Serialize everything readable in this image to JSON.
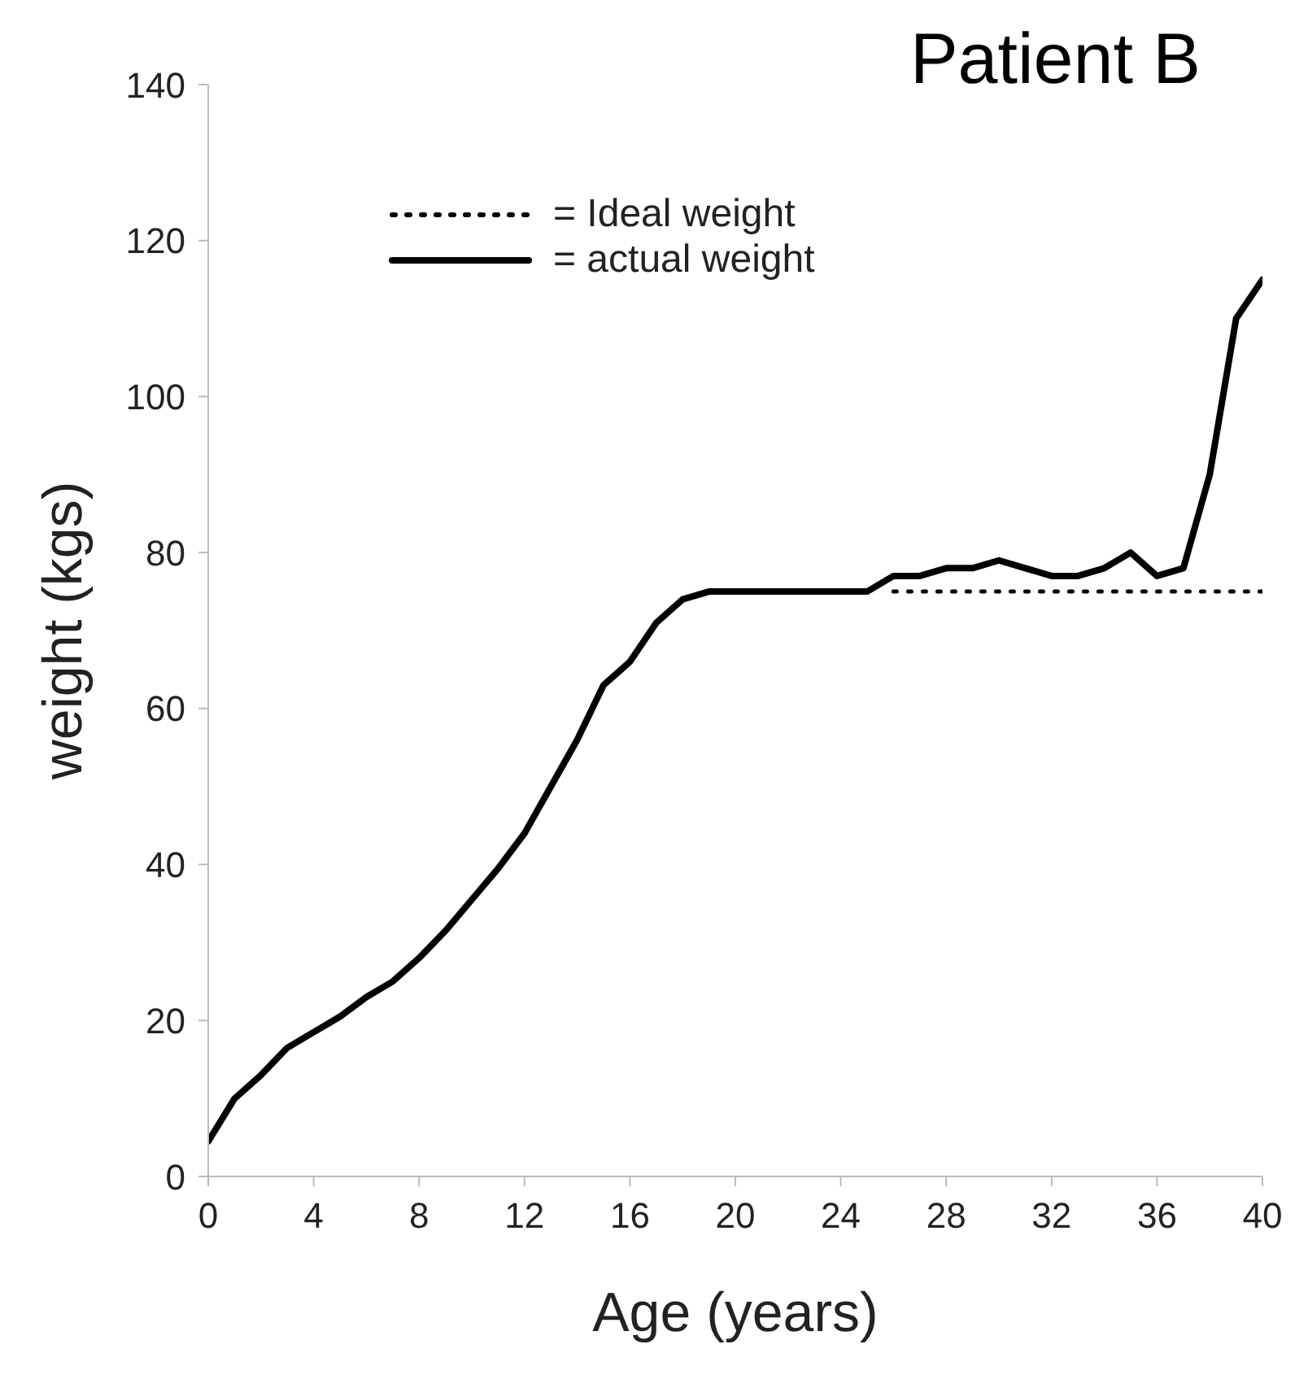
{
  "chart_data": {
    "type": "line",
    "title": "Patient B",
    "xlabel": "Age (years)",
    "ylabel": "weight (kgs)",
    "xlim": [
      0,
      40
    ],
    "xticks": [
      0,
      4,
      8,
      12,
      16,
      20,
      24,
      28,
      32,
      36,
      40
    ],
    "ylim": [
      0,
      140
    ],
    "yticks": [
      0,
      20,
      40,
      60,
      80,
      100,
      120,
      140
    ],
    "legend": "top left",
    "marker": "none",
    "series": [
      {
        "name": "= Ideal weight",
        "color": "#000000",
        "line_style": "dotted",
        "x": [
          26,
          40
        ],
        "values": [
          75,
          75
        ]
      },
      {
        "name": "= actual weight",
        "color": "#000000",
        "line_style": "solid",
        "x": [
          0,
          1,
          2,
          3,
          4,
          5,
          6,
          7,
          8,
          9,
          10,
          11,
          12,
          13,
          14,
          15,
          16,
          17,
          18,
          19,
          20,
          21,
          22,
          23,
          24,
          25,
          26,
          27,
          28,
          29,
          30,
          31,
          32,
          33,
          34,
          35,
          36,
          37,
          38,
          39,
          40
        ],
        "values": [
          4.5,
          10,
          13,
          16.5,
          18.5,
          20.5,
          23,
          25,
          28,
          31.5,
          35.5,
          39.5,
          44,
          50,
          56,
          63,
          66,
          71,
          74,
          75,
          75,
          75,
          75,
          75,
          75,
          75,
          77,
          77,
          78,
          78,
          79,
          78,
          77,
          77,
          78,
          80,
          77,
          78,
          90,
          110,
          115
        ]
      }
    ]
  }
}
